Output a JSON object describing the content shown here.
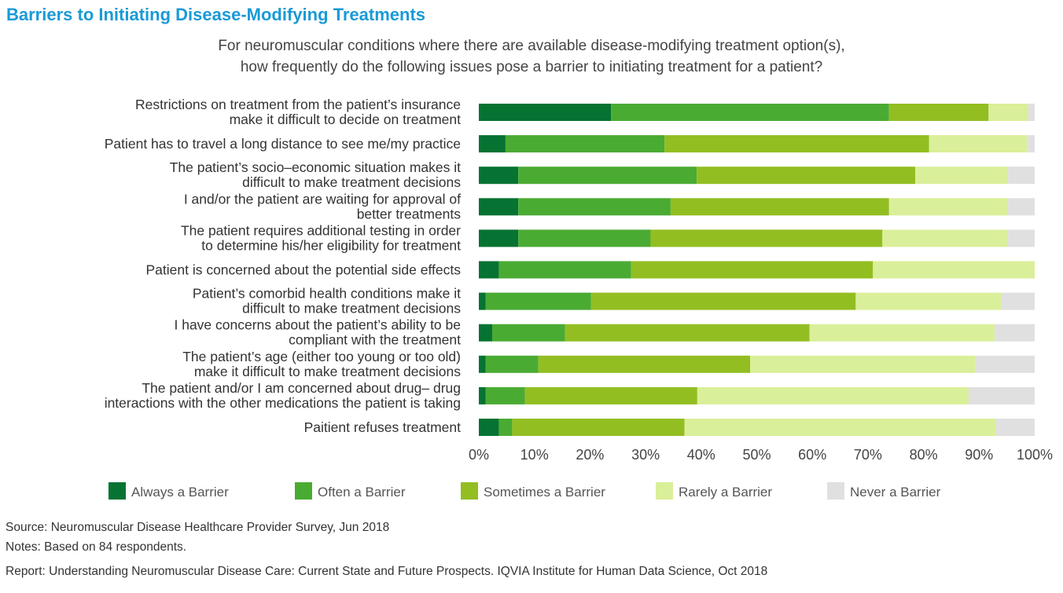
{
  "chart_data": {
    "type": "bar",
    "orientation": "horizontal",
    "stacked": true,
    "title": "Barriers to Initiating Disease-Modifying Treatments",
    "subtitle": [
      "For neuromuscular conditions where there are available disease-modifying treatment option(s),",
      "how frequently do the following issues pose a barrier to initiating treatment for a patient?"
    ],
    "categories": [
      [
        "Restrictions on treatment from the patient’s insurance",
        "make it difficult to decide on treatment"
      ],
      [
        "Patient has to travel a long distance to see me/my practice"
      ],
      [
        "The patient’s socio–economic situation makes it",
        "difficult to make treatment decisions"
      ],
      [
        "I and/or the patient are waiting for approval of",
        "better treatments"
      ],
      [
        "The patient requires additional testing in order",
        "to determine his/her eligibility for treatment"
      ],
      [
        "Patient is concerned about the potential side effects"
      ],
      [
        "Patient’s comorbid health conditions make it",
        "difficult to make treatment decisions"
      ],
      [
        "I have concerns about the patient’s ability to be",
        "compliant with the treatment"
      ],
      [
        "The patient’s age (either too young or too old)",
        "make it difficult to make treatment decisions"
      ],
      [
        "The patient and/or I am concerned about drug– drug",
        "interactions with the other medications the patient is taking"
      ],
      [
        "Paitient refuses treatment"
      ]
    ],
    "series": [
      {
        "name": "Always a Barrier",
        "color": "#067333",
        "values": [
          23.8,
          4.8,
          7.1,
          7.1,
          7.1,
          3.6,
          1.2,
          2.4,
          1.2,
          1.2,
          3.6
        ]
      },
      {
        "name": "Often a Barrier",
        "color": "#4aab33",
        "values": [
          50.0,
          28.6,
          32.1,
          27.4,
          23.8,
          23.8,
          19.0,
          13.1,
          9.5,
          7.1,
          2.4
        ]
      },
      {
        "name": "Sometimes a Barrier",
        "color": "#92be22",
        "values": [
          17.9,
          47.6,
          39.3,
          39.3,
          41.7,
          43.5,
          47.6,
          44.0,
          38.1,
          31.0,
          31.0
        ]
      },
      {
        "name": "Rarely a Barrier",
        "color": "#daef99",
        "values": [
          7.1,
          17.6,
          16.7,
          21.4,
          22.6,
          29.1,
          26.2,
          33.3,
          40.5,
          48.8,
          56.0
        ]
      },
      {
        "name": "Never a Barrier",
        "color": "#e0e0e0",
        "values": [
          1.2,
          1.4,
          4.8,
          4.8,
          4.8,
          0,
          6.0,
          7.2,
          10.7,
          11.9,
          7.0
        ]
      }
    ],
    "xlim": [
      0,
      100
    ],
    "xticks": [
      "0%",
      "10%",
      "20%",
      "30%",
      "40%",
      "50%",
      "60%",
      "70%",
      "80%",
      "90%",
      "100%"
    ],
    "grid": false,
    "legend_placement": "bottom"
  },
  "footer": {
    "source": "Source: Neuromuscular Disease Healthcare Provider Survey, Jun 2018",
    "notes": "Notes: Based on 84 respondents.",
    "report": "Report: Understanding Neuromuscular Disease Care: Current State and Future Prospects. IQVIA Institute for Human Data Science, Oct 2018"
  }
}
